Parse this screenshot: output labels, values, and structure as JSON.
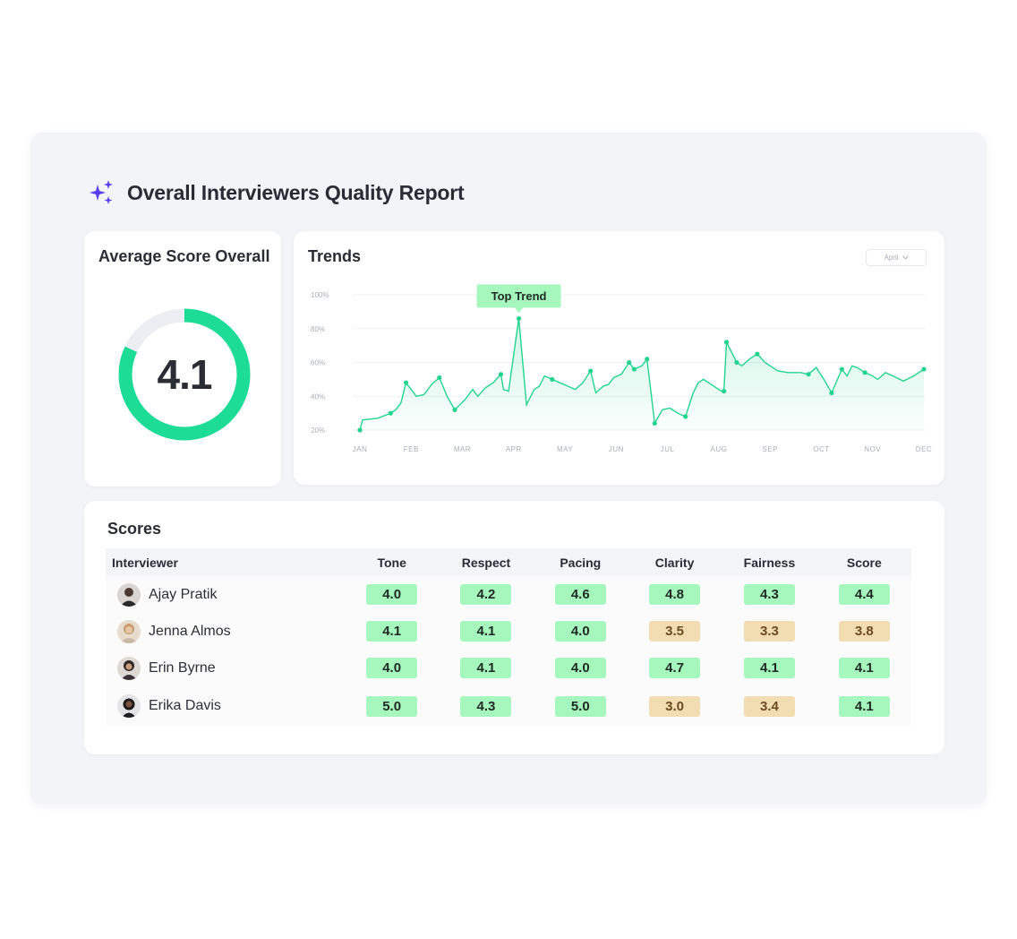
{
  "report": {
    "title": "Overall Interviewers Quality Report",
    "icon": "sparkles-icon",
    "accent": "#5a3df0"
  },
  "average": {
    "title": "Average Score Overall",
    "value": "4.1",
    "fraction": 0.82,
    "ring_color": "#1ddc95",
    "track_color": "#eceef3"
  },
  "trends": {
    "title": "Trends",
    "month_select": "April",
    "tooltip": "Top Trend"
  },
  "chart_data": {
    "type": "line",
    "x": [
      "JAN",
      "FEB",
      "MAR",
      "APR",
      "MAY",
      "JUN",
      "JUL",
      "AUG",
      "SEP",
      "OCT",
      "NOV",
      "DEC"
    ],
    "ytick_labels": [
      "100%",
      "80%",
      "60%",
      "40%",
      "20%"
    ],
    "ylim": [
      20,
      100
    ],
    "series": [
      {
        "color": "#22d48e",
        "points": [
          [
            0.0,
            20
          ],
          [
            0.05,
            26
          ],
          [
            0.35,
            27
          ],
          [
            0.6,
            30
          ],
          [
            0.7,
            32
          ],
          [
            0.8,
            36
          ],
          [
            0.9,
            48
          ],
          [
            1.0,
            44
          ],
          [
            1.1,
            40
          ],
          [
            1.25,
            41
          ],
          [
            1.4,
            47
          ],
          [
            1.55,
            51
          ],
          [
            1.7,
            40
          ],
          [
            1.85,
            32
          ],
          [
            2.05,
            38
          ],
          [
            2.2,
            44
          ],
          [
            2.3,
            40
          ],
          [
            2.45,
            45
          ],
          [
            2.6,
            48
          ],
          [
            2.75,
            53
          ],
          [
            2.8,
            44
          ],
          [
            2.9,
            43
          ],
          [
            3.1,
            86
          ],
          [
            3.25,
            35
          ],
          [
            3.4,
            44
          ],
          [
            3.5,
            46
          ],
          [
            3.6,
            52
          ],
          [
            3.75,
            50
          ],
          [
            3.9,
            48
          ],
          [
            4.05,
            46
          ],
          [
            4.2,
            44
          ],
          [
            4.35,
            48
          ],
          [
            4.5,
            55
          ],
          [
            4.6,
            42
          ],
          [
            4.75,
            46
          ],
          [
            4.85,
            47
          ],
          [
            4.95,
            51
          ],
          [
            5.1,
            53
          ],
          [
            5.25,
            60
          ],
          [
            5.35,
            56
          ],
          [
            5.5,
            58
          ],
          [
            5.6,
            62
          ],
          [
            5.75,
            24
          ],
          [
            5.9,
            32
          ],
          [
            6.05,
            33
          ],
          [
            6.2,
            30
          ],
          [
            6.35,
            28
          ],
          [
            6.5,
            42
          ],
          [
            6.6,
            48
          ],
          [
            6.7,
            50
          ],
          [
            6.8,
            48
          ],
          [
            6.9,
            46
          ],
          [
            7.0,
            44
          ],
          [
            7.05,
            43
          ],
          [
            7.1,
            43
          ],
          [
            7.15,
            72
          ],
          [
            7.25,
            66
          ],
          [
            7.35,
            60
          ],
          [
            7.45,
            58
          ],
          [
            7.6,
            62
          ],
          [
            7.75,
            65
          ],
          [
            7.9,
            60
          ],
          [
            8.0,
            58
          ],
          [
            8.15,
            55
          ],
          [
            8.35,
            54
          ],
          [
            8.6,
            54
          ],
          [
            8.75,
            53
          ],
          [
            8.9,
            57
          ],
          [
            9.05,
            50
          ],
          [
            9.2,
            42
          ],
          [
            9.4,
            56
          ],
          [
            9.5,
            52
          ],
          [
            9.6,
            58
          ],
          [
            9.7,
            57
          ],
          [
            9.85,
            54
          ],
          [
            10.0,
            52
          ],
          [
            10.1,
            50
          ],
          [
            10.25,
            54
          ],
          [
            10.4,
            52
          ],
          [
            10.6,
            49
          ],
          [
            10.8,
            52
          ],
          [
            11.0,
            56
          ]
        ],
        "markers": [
          [
            0.0,
            20
          ],
          [
            0.6,
            30
          ],
          [
            0.9,
            48
          ],
          [
            1.55,
            51
          ],
          [
            1.85,
            32
          ],
          [
            2.75,
            53
          ],
          [
            3.1,
            86
          ],
          [
            3.75,
            50
          ],
          [
            4.5,
            55
          ],
          [
            5.25,
            60
          ],
          [
            5.35,
            56
          ],
          [
            5.6,
            62
          ],
          [
            5.75,
            24
          ],
          [
            6.35,
            28
          ],
          [
            7.15,
            72
          ],
          [
            7.1,
            43
          ],
          [
            7.35,
            60
          ],
          [
            7.75,
            65
          ],
          [
            8.75,
            53
          ],
          [
            9.2,
            42
          ],
          [
            9.4,
            56
          ],
          [
            9.85,
            54
          ],
          [
            11.0,
            56
          ]
        ],
        "peak": [
          3.1,
          86
        ]
      }
    ]
  },
  "scores": {
    "title": "Scores",
    "columns": [
      "Interviewer",
      "Tone",
      "Respect",
      "Pacing",
      "Clarity",
      "Fairness",
      "Score"
    ],
    "rows": [
      {
        "name": "Ajay Pratik",
        "values": [
          "4.0",
          "4.2",
          "4.6",
          "4.8",
          "4.3",
          "4.4"
        ],
        "status": [
          "good",
          "good",
          "good",
          "good",
          "good",
          "good"
        ]
      },
      {
        "name": "Jenna Almos",
        "values": [
          "4.1",
          "4.1",
          "4.0",
          "3.5",
          "3.3",
          "3.8"
        ],
        "status": [
          "good",
          "good",
          "good",
          "warn",
          "warn",
          "warn"
        ]
      },
      {
        "name": "Erin Byrne",
        "values": [
          "4.0",
          "4.1",
          "4.0",
          "4.7",
          "4.1",
          "4.1"
        ],
        "status": [
          "good",
          "good",
          "good",
          "good",
          "good",
          "good"
        ]
      },
      {
        "name": "Erika Davis",
        "values": [
          "5.0",
          "4.3",
          "5.0",
          "3.0",
          "3.4",
          "4.1"
        ],
        "status": [
          "good",
          "good",
          "good",
          "warn",
          "warn",
          "good"
        ]
      }
    ],
    "good_color": "#a6f7be",
    "warn_color": "#f2dcb2"
  }
}
